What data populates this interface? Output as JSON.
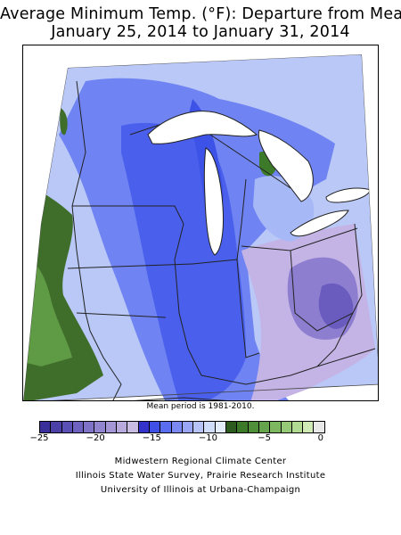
{
  "title": {
    "line1": "Average Minimum Temp. (°F): Departure from Mean",
    "line2": "January 25, 2014 to January 31, 2014"
  },
  "map": {
    "region": "Midwest United States",
    "variable": "Average minimum temperature departure from mean",
    "units": "°F"
  },
  "mean_period_note": "Mean period is 1981-2010.",
  "legend": {
    "tick_labels": [
      "−25",
      "−20",
      "−15",
      "−10",
      "−5",
      "0"
    ],
    "tick_values": [
      -25,
      -20,
      -15,
      -10,
      -5,
      0
    ],
    "colors": [
      "#3a2f9a",
      "#4a40a8",
      "#5b50b5",
      "#6d62c0",
      "#7f73c8",
      "#9285cf",
      "#a597d6",
      "#b8aadd",
      "#c9bce3",
      "#3333cc",
      "#3f4fe6",
      "#5a6cf0",
      "#7a89f3",
      "#98a6f5",
      "#b5c3f7",
      "#cfdcfa",
      "#e3ecfc",
      "#2d5a1e",
      "#3c7a2a",
      "#4f8f3a",
      "#65a44d",
      "#7db860",
      "#96c977",
      "#b1da92",
      "#cfeab4",
      "#e8e8e8"
    ]
  },
  "credits": [
    "Midwestern Regional Climate Center",
    "Illinois State Water Survey, Prairie Research Institute",
    "University of Illinois at Urbana-Champaign"
  ]
}
